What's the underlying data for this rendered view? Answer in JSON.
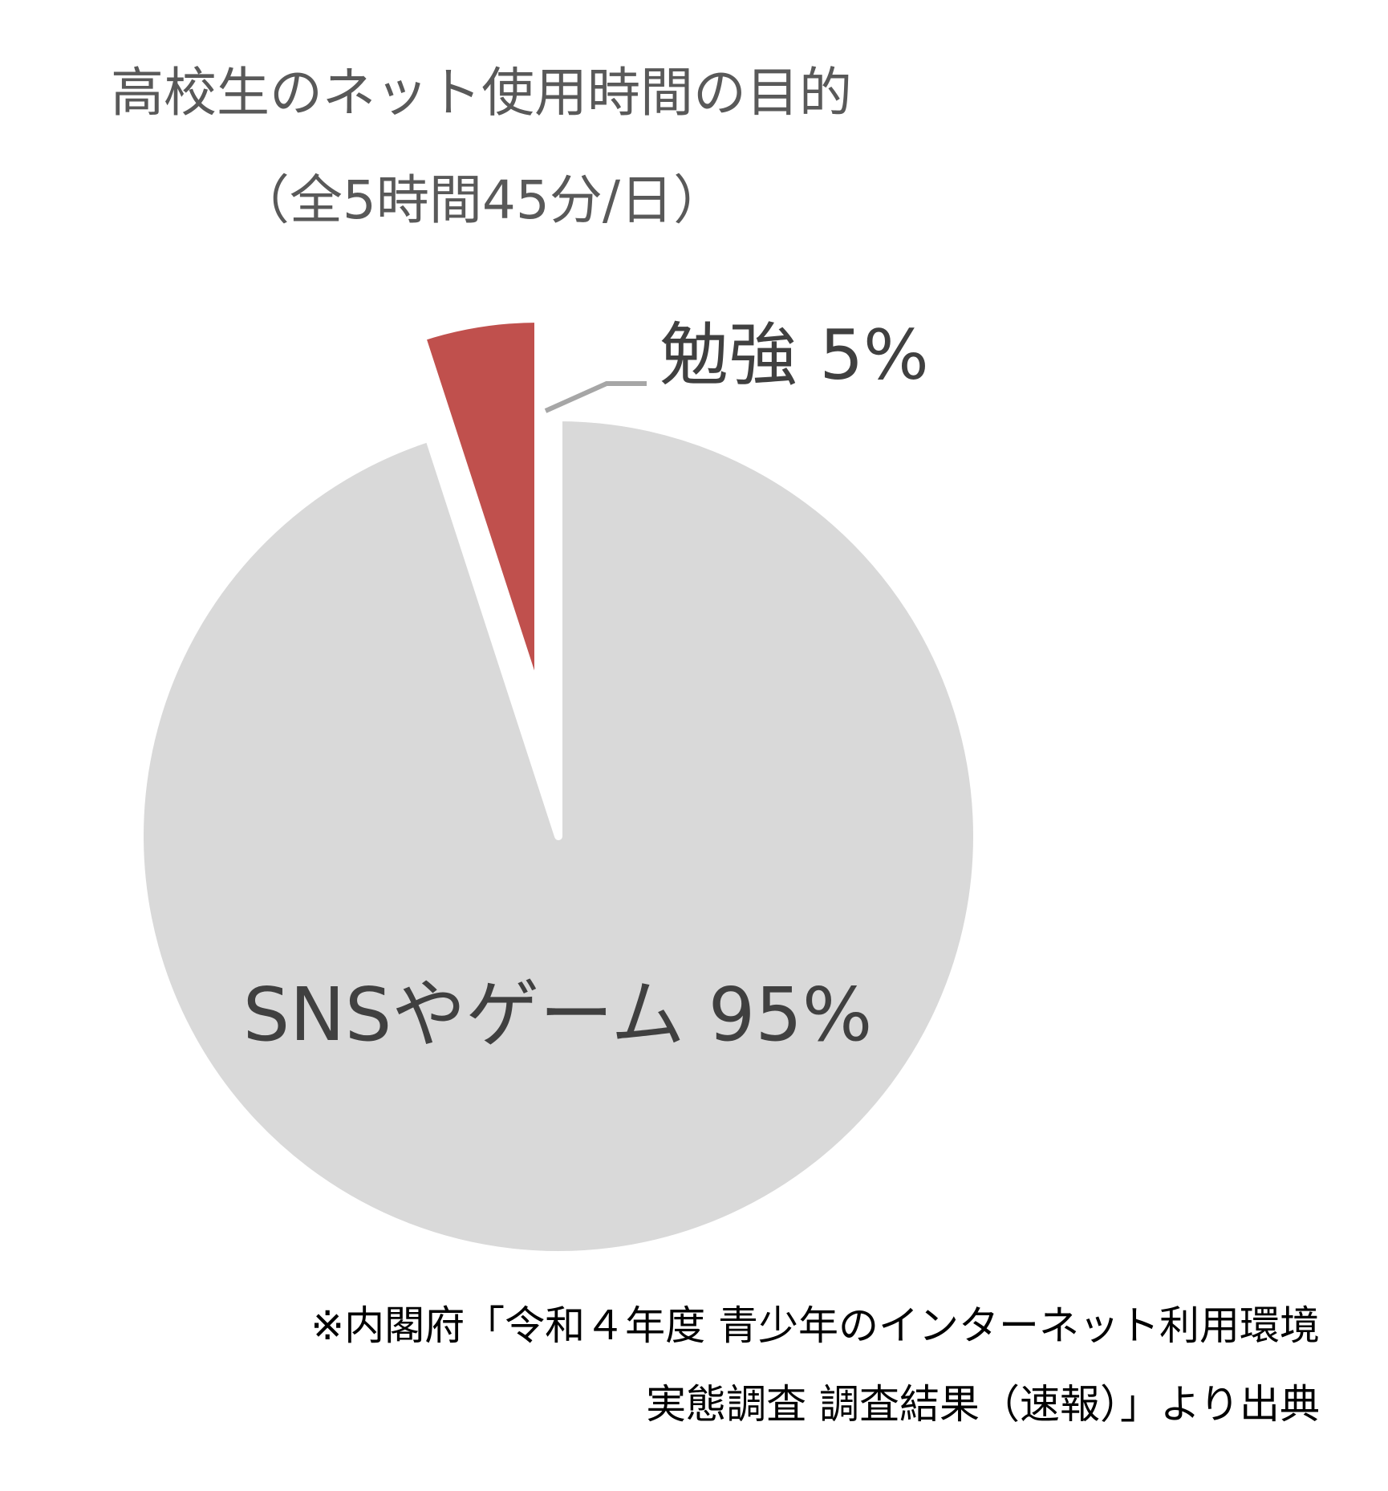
{
  "chart_data": {
    "type": "pie",
    "title": "高校生のネット使用時間の目的",
    "subtitle": "（全5時間45分/日）",
    "slices": [
      {
        "label": "勉強",
        "value": 5,
        "value_label": "5%",
        "color": "#c0504d",
        "exploded": true
      },
      {
        "label": "SNSやゲーム",
        "value": 95,
        "value_label": "95%",
        "color": "#d9d9d9",
        "exploded": false
      }
    ],
    "start_angle": "12 o'clock, clockwise = SNSやゲーム first"
  },
  "source": {
    "line1": "※内閣府「令和４年度 青少年のインターネット利用環境",
    "line2": "実態調査 調査結果（速報）」より出典"
  },
  "colors": {
    "title_text": "#595959",
    "label_text": "#404040",
    "leader_line": "#a6a6a6"
  }
}
